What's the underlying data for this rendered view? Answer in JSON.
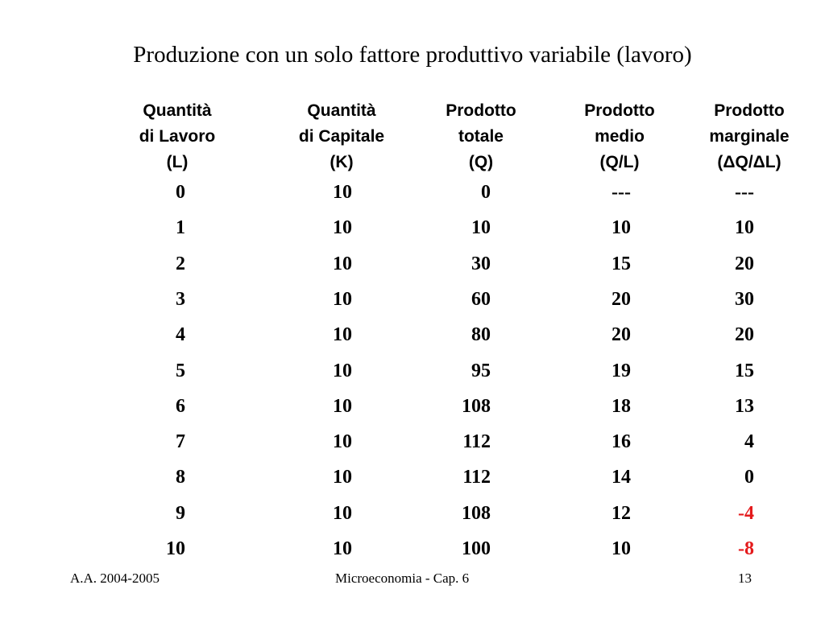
{
  "title": "Produzione con un solo fattore produttivo variabile (lavoro)",
  "headers": [
    [
      "Quantità",
      "di Lavoro",
      "(L)"
    ],
    [
      "Quantità",
      "di Capitale",
      "(K)"
    ],
    [
      "Prodotto",
      "totale",
      "(Q)"
    ],
    [
      "Prodotto",
      "medio",
      "(Q/L)"
    ],
    [
      "Prodotto",
      "marginale",
      "(ΔQ/ΔL)"
    ]
  ],
  "rows": [
    [
      "0",
      "10",
      "0",
      "---",
      "---"
    ],
    [
      "1",
      "10",
      "10",
      "10",
      "10"
    ],
    [
      "2",
      "10",
      "30",
      "15",
      "20"
    ],
    [
      "3",
      "10",
      "60",
      "20",
      "30"
    ],
    [
      "4",
      "10",
      "80",
      "20",
      "20"
    ],
    [
      "5",
      "10",
      "95",
      "19",
      "15"
    ],
    [
      "6",
      "10",
      "108",
      "18",
      "13"
    ],
    [
      "7",
      "10",
      "112",
      "16",
      "4"
    ],
    [
      "8",
      "10",
      "112",
      "14",
      "0"
    ],
    [
      "9",
      "10",
      "108",
      "12",
      "-4"
    ],
    [
      "10",
      "10",
      "100",
      "10",
      "-8"
    ]
  ],
  "negative_color": "#e41a1c",
  "footer": {
    "left": "A.A. 2004-2005",
    "center": "Microeconomia - Cap. 6",
    "right": "13"
  }
}
